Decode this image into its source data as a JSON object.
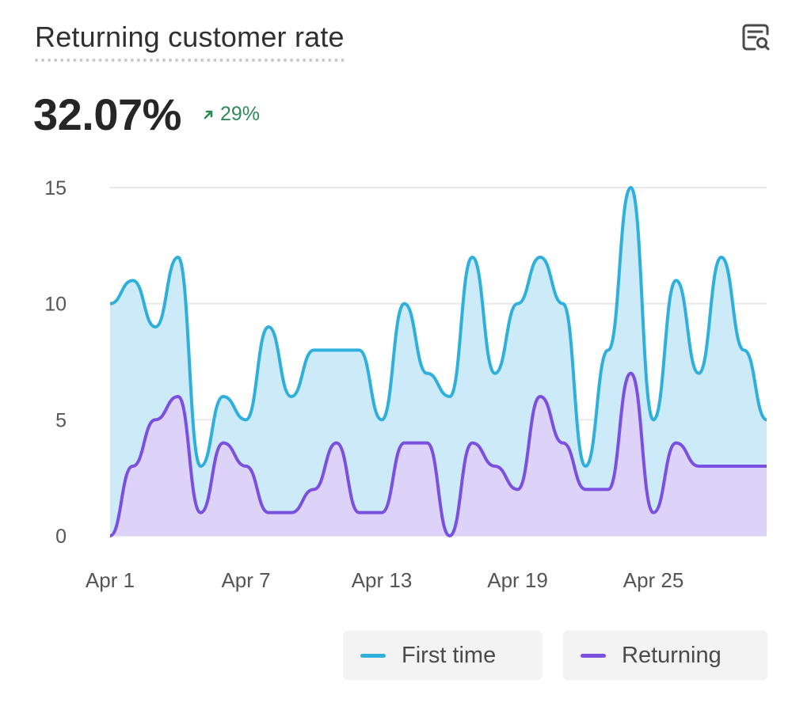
{
  "header": {
    "title": "Returning customer rate",
    "metric_value": "32.07%",
    "delta_value": "29%"
  },
  "colors": {
    "first_time_line": "#2fb0dc",
    "first_time_fill": "#c9e9f8",
    "returning_line": "#7b4fe0",
    "returning_fill": "#ddd1f7",
    "delta_positive": "#2f8a5b",
    "grid": "#e8e8e8"
  },
  "icons": {
    "explore": "report-search-icon",
    "delta": "arrow-up-right-icon"
  },
  "chart_data": {
    "type": "area",
    "x": [
      "Apr 1",
      "Apr 2",
      "Apr 3",
      "Apr 4",
      "Apr 5",
      "Apr 6",
      "Apr 7",
      "Apr 8",
      "Apr 9",
      "Apr 10",
      "Apr 11",
      "Apr 12",
      "Apr 13",
      "Apr 14",
      "Apr 15",
      "Apr 16",
      "Apr 17",
      "Apr 18",
      "Apr 19",
      "Apr 20",
      "Apr 21",
      "Apr 22",
      "Apr 23",
      "Apr 24",
      "Apr 25",
      "Apr 26",
      "Apr 27",
      "Apr 28",
      "Apr 29",
      "Apr 30"
    ],
    "x_tick_labels": [
      "Apr 1",
      "Apr 7",
      "Apr 13",
      "Apr 19",
      "Apr 25"
    ],
    "y_ticks": [
      0,
      5,
      10,
      15
    ],
    "ylim": [
      0,
      15
    ],
    "grid": true,
    "legend_position": "bottom-right",
    "series": [
      {
        "name": "First time",
        "values": [
          10,
          11,
          9,
          12,
          3,
          6,
          5,
          9,
          6,
          8,
          8,
          8,
          5,
          10,
          7,
          6,
          12,
          7,
          10,
          12,
          10,
          3,
          8,
          15,
          5,
          11,
          7,
          12,
          8,
          5
        ]
      },
      {
        "name": "Returning",
        "values": [
          0,
          3,
          5,
          6,
          1,
          4,
          3,
          1,
          1,
          2,
          4,
          1,
          1,
          4,
          4,
          0,
          4,
          3,
          2,
          6,
          4,
          2,
          2,
          7,
          1,
          4,
          3,
          3,
          3,
          3
        ]
      }
    ]
  }
}
